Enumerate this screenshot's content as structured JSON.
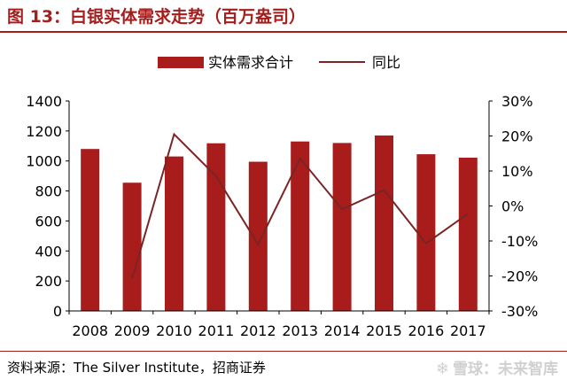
{
  "title": "图 13：白银实体需求走势（百万盎司）",
  "source": "资料来源：The Silver Institute，招商证券",
  "watermark": "雪球：未来智库",
  "chart_data": {
    "type": "bar",
    "categories": [
      "2008",
      "2009",
      "2010",
      "2011",
      "2012",
      "2013",
      "2014",
      "2015",
      "2016",
      "2017"
    ],
    "series": [
      {
        "name": "实体需求合计",
        "type": "bar",
        "axis": "left",
        "values": [
          1080,
          855,
          1030,
          1118,
          995,
          1130,
          1120,
          1170,
          1045,
          1022
        ]
      },
      {
        "name": "同比",
        "type": "line",
        "axis": "right",
        "values": [
          null,
          -20.8,
          20.5,
          8.5,
          -11.0,
          13.6,
          -0.9,
          4.5,
          -10.7,
          -2.2
        ]
      }
    ],
    "ylim": [
      0,
      1400
    ],
    "y_ticks": [
      "0",
      "200",
      "400",
      "600",
      "800",
      "1000",
      "1200",
      "1400"
    ],
    "y2lim": [
      -30,
      30
    ],
    "y2_ticks": [
      "-30%",
      "-20%",
      "-10%",
      "0%",
      "10%",
      "20%",
      "30%"
    ],
    "legend_position": "top",
    "grid": false,
    "colors": {
      "bar": "#a81c1c",
      "line": "#7a2424",
      "accent": "#a61d1d"
    }
  }
}
